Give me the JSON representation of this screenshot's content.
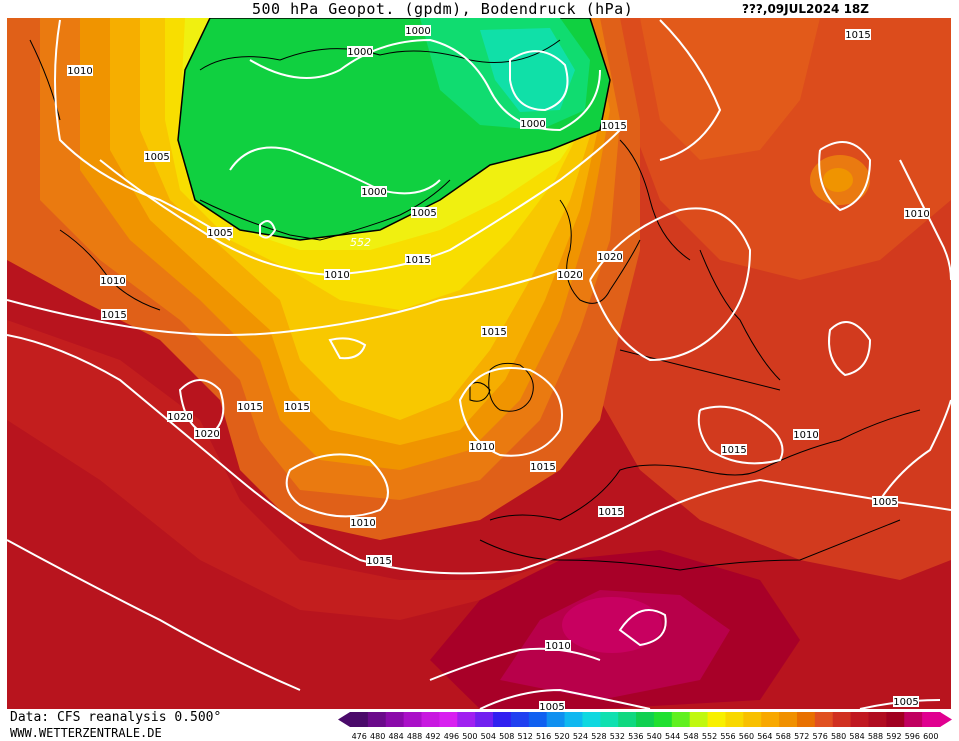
{
  "header": {
    "title": "500 hPa Geopot. (gpdm), Bodendruck (hPa)",
    "run_label": "???,09JUL2024 18Z"
  },
  "footer": {
    "data_source": "Data: CFS reanalysis 0.500°",
    "website": "WWW.WETTERZENTRALE.DE"
  },
  "legend": {
    "ticks": [
      "476",
      "480",
      "484",
      "488",
      "492",
      "496",
      "500",
      "504",
      "508",
      "512",
      "516",
      "520",
      "524",
      "528",
      "532",
      "536",
      "540",
      "544",
      "548",
      "552",
      "556",
      "560",
      "564",
      "568",
      "572",
      "576",
      "580",
      "584",
      "588",
      "592",
      "596",
      "600"
    ],
    "colors": [
      "#4a0a6a",
      "#6a0a8a",
      "#8a0aaa",
      "#aa10c8",
      "#c818e0",
      "#d820f0",
      "#a020f0",
      "#7020f0",
      "#3020f0",
      "#2040f0",
      "#1060f0",
      "#1090f0",
      "#10b8f0",
      "#10d8e0",
      "#10e0b0",
      "#10d880",
      "#10d050",
      "#20e030",
      "#60f020",
      "#c0f810",
      "#f8f000",
      "#f8d800",
      "#f8c000",
      "#f8a800",
      "#f09000",
      "#e87000",
      "#e05020",
      "#d03020",
      "#c01820",
      "#b00c20",
      "#a00020",
      "#c00060",
      "#e00090"
    ]
  },
  "contours": {
    "geopotential_label": "552",
    "pressure_labels": [
      "1000",
      "1000",
      "1000",
      "1000",
      "1005",
      "1005",
      "1005",
      "1005",
      "1005",
      "1005",
      "1010",
      "1010",
      "1010",
      "1010",
      "1010",
      "1010",
      "1010",
      "1010",
      "1015",
      "1015",
      "1015",
      "1015",
      "1015",
      "1015",
      "1015",
      "1015",
      "1015",
      "1015",
      "1015",
      "1020",
      "1020",
      "1020",
      "1020"
    ]
  }
}
